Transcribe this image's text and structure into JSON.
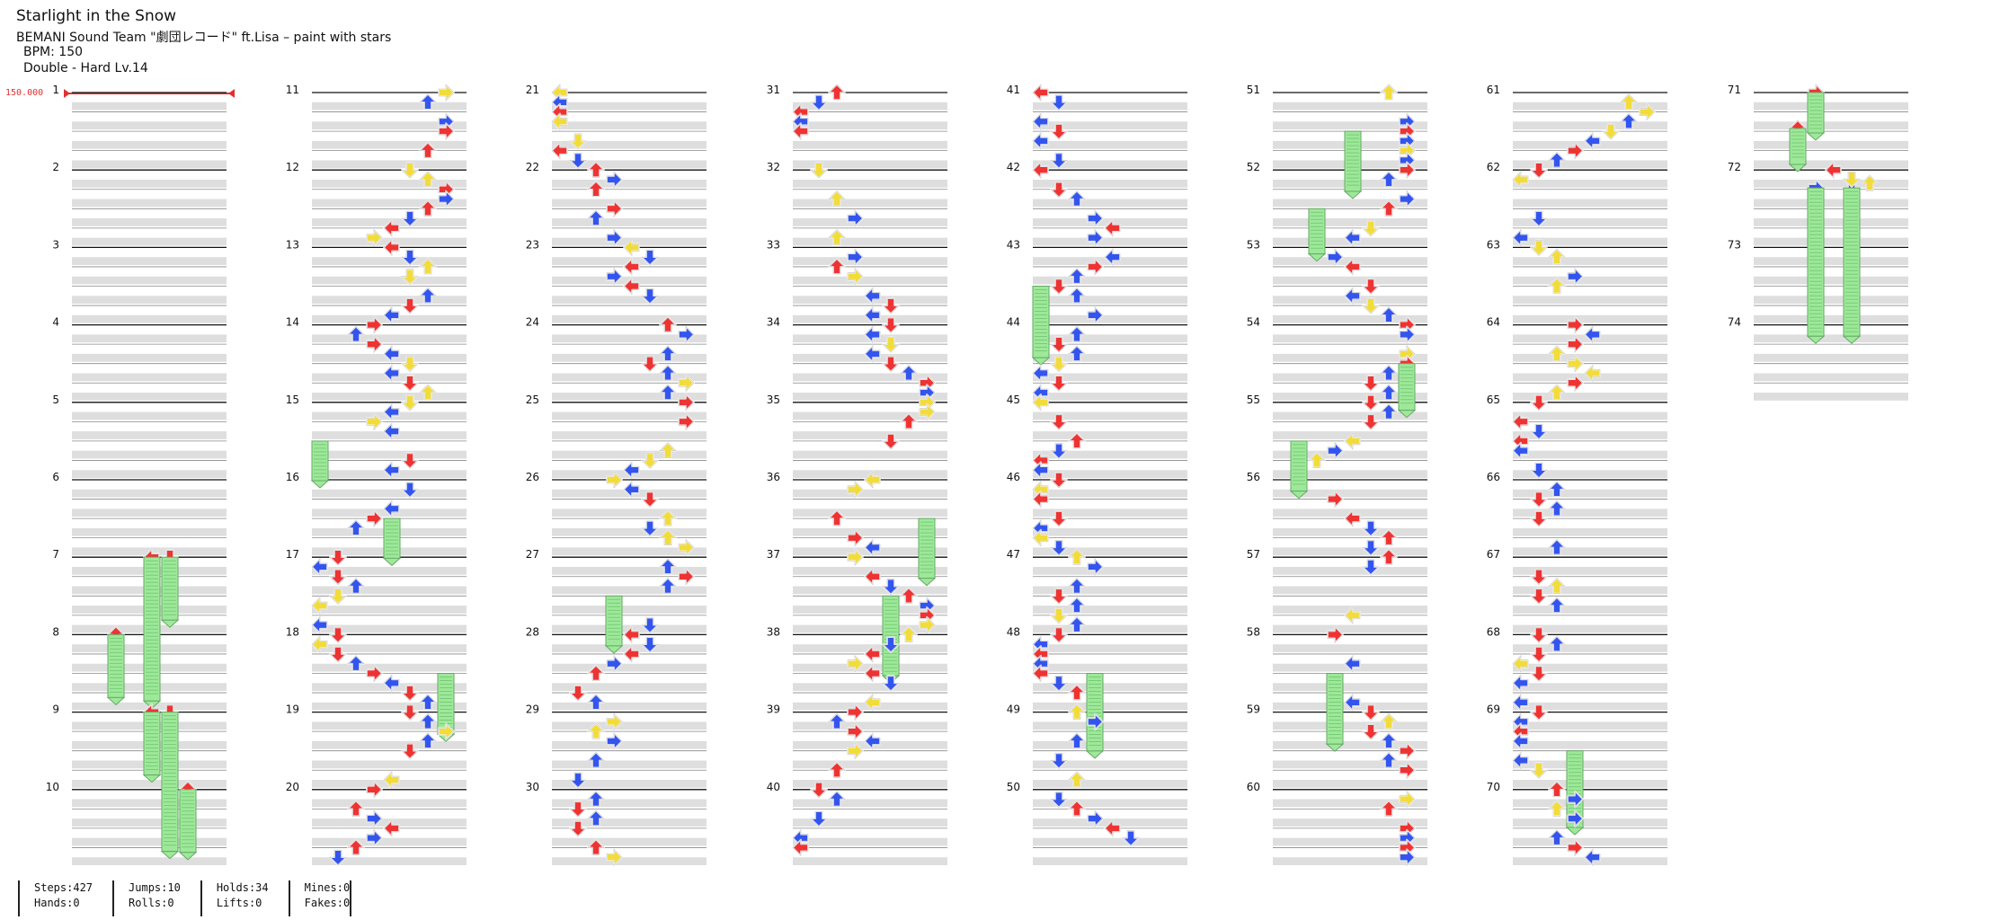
{
  "song": {
    "title": "Starlight in the Snow",
    "artist": "BEMANI Sound Team \"劇団レコード\" ft.Lisa – paint with stars",
    "bpm_text": "BPM: 150",
    "difficulty_text": "Double - Hard  Lv.14",
    "bpm_marker": "150.000"
  },
  "measures": [
    "1",
    "2",
    "3",
    "4",
    "5",
    "6",
    "7",
    "8",
    "9",
    "10",
    "11",
    "12",
    "13",
    "14",
    "15",
    "16",
    "17",
    "18",
    "19",
    "20",
    "21",
    "22",
    "23",
    "24",
    "25",
    "26",
    "27",
    "28",
    "29",
    "30",
    "31",
    "32",
    "33",
    "34",
    "35",
    "36",
    "37",
    "38",
    "39",
    "40",
    "41",
    "42",
    "43",
    "44",
    "45",
    "46",
    "47",
    "48",
    "49",
    "50",
    "51",
    "52",
    "53",
    "54",
    "55",
    "56",
    "57",
    "58",
    "59",
    "60",
    "61",
    "62",
    "63",
    "64",
    "65",
    "66",
    "67",
    "68",
    "69",
    "70",
    "71",
    "72",
    "73",
    "74"
  ],
  "colors": {
    "red_arrow": "#ee3333",
    "blue_arrow": "#3355ee",
    "yellow_arrow": "#f2dc3a",
    "hold": "#9ee89a",
    "band": "#dedede",
    "bpm": "#e03030"
  },
  "stats": {
    "col1": [
      "Steps:427",
      "Hands:0"
    ],
    "col2": [
      "Jumps:10",
      "Rolls:0"
    ],
    "col3": [
      "Holds:34",
      "Lifts:0"
    ],
    "col4": [
      "Mines:0",
      "Fakes:0"
    ]
  }
}
